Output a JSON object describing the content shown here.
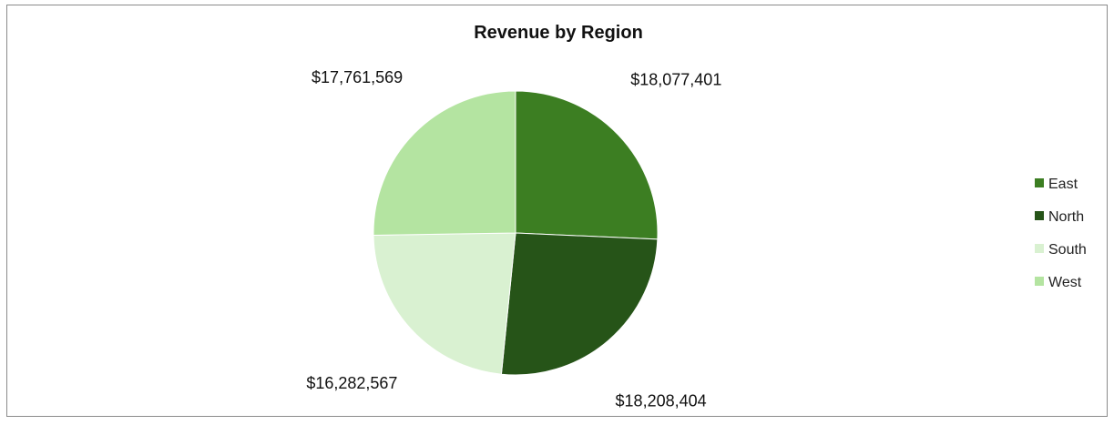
{
  "chart_data": {
    "type": "pie",
    "title": "Revenue by Region",
    "categories": [
      "East",
      "North",
      "South",
      "West"
    ],
    "values": [
      18077401,
      18208404,
      16282567,
      17761569
    ],
    "data_labels": [
      "$18,077,401",
      "$18,208,404",
      "$16,282,567",
      "$17,761,569"
    ],
    "colors": [
      "#3c7e22",
      "#265418",
      "#d9f1d1",
      "#b4e4a1"
    ],
    "legend_position": "right",
    "start_angle_degrees": 0,
    "direction": "clockwise"
  }
}
